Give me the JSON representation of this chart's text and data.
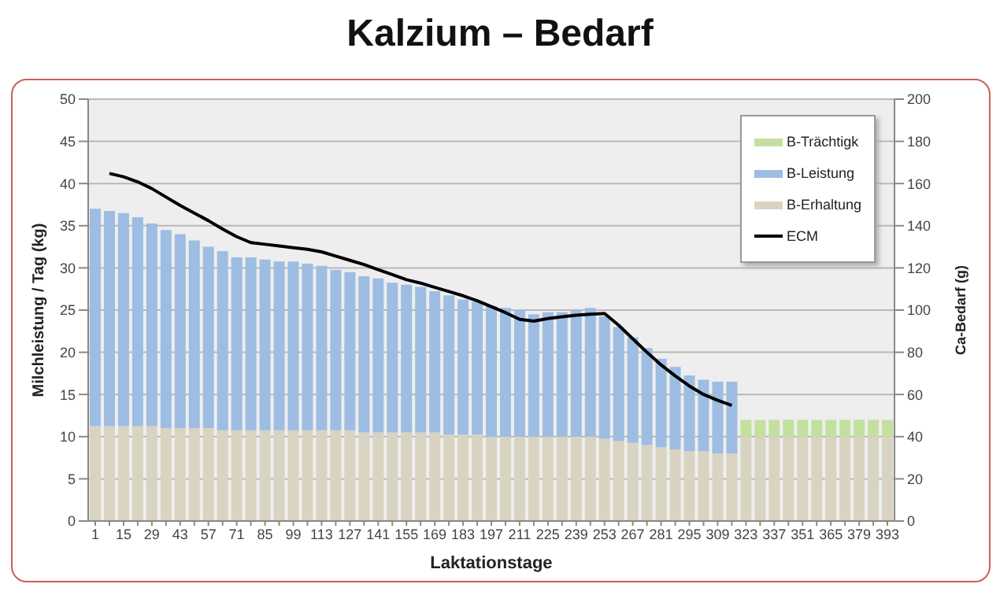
{
  "chart_data": {
    "type": "bar",
    "title": "Kalzium – Bedarf",
    "xlabel": "Laktationstage",
    "ylabel": "Milchleistung / Tag (kg)",
    "y2label": "Ca-Bedarf (g)",
    "categories": [
      "1",
      null,
      "15",
      null,
      "29",
      null,
      "43",
      null,
      "57",
      null,
      "71",
      null,
      "85",
      null,
      "99",
      null,
      "113",
      null,
      "127",
      null,
      "141",
      null,
      "155",
      null,
      "169",
      null,
      "183",
      null,
      "197",
      null,
      "211",
      null,
      "225",
      null,
      "239",
      null,
      "253",
      null,
      "267",
      null,
      "281",
      null,
      "295",
      null,
      "309",
      null,
      "323",
      null,
      "337",
      null,
      "351",
      null,
      "365",
      null,
      "379",
      null,
      "393"
    ],
    "stacked": true,
    "series": [
      {
        "name": "B-Erhaltung",
        "color": "#d9d3c1",
        "axis": "y2",
        "values": [
          45,
          45,
          45,
          45,
          45,
          44,
          44,
          44,
          44,
          43,
          43,
          43,
          43,
          43,
          43,
          43,
          43,
          43,
          43,
          42,
          42,
          42,
          42,
          42,
          42,
          41,
          41,
          41,
          40,
          40,
          40,
          40,
          40,
          40,
          40,
          40,
          39,
          38,
          37,
          36,
          35,
          34,
          33,
          33,
          32,
          32,
          40,
          40,
          40,
          40,
          40,
          40,
          40,
          40,
          40,
          40,
          40
        ]
      },
      {
        "name": "B-Leistung",
        "color": "#9dbde3",
        "axis": "y2",
        "values": [
          103,
          102,
          101,
          99,
          96,
          94,
          92,
          89,
          86,
          85,
          82,
          82,
          81,
          80,
          80,
          79,
          78,
          76,
          75,
          74,
          73,
          71,
          70,
          69,
          67,
          66,
          64,
          63,
          62,
          61,
          60,
          58,
          59,
          59,
          60,
          61,
          58,
          54,
          50,
          46,
          42,
          39,
          36,
          34,
          34,
          34,
          null,
          null,
          null,
          null,
          null,
          null,
          null,
          null,
          null,
          null,
          null
        ]
      },
      {
        "name": "B-Trächtigk",
        "color": "#c4e0a0",
        "axis": "y2",
        "values": [
          null,
          null,
          null,
          null,
          null,
          null,
          null,
          null,
          null,
          null,
          null,
          null,
          null,
          null,
          null,
          null,
          null,
          null,
          null,
          null,
          null,
          null,
          null,
          null,
          null,
          null,
          null,
          null,
          null,
          null,
          null,
          null,
          null,
          null,
          null,
          null,
          null,
          null,
          null,
          null,
          null,
          null,
          null,
          null,
          null,
          null,
          8,
          8,
          8,
          8,
          8,
          8,
          8,
          8,
          8,
          8,
          8
        ]
      },
      {
        "name": "ECM",
        "type": "line",
        "color": "#000000",
        "values": [
          null,
          41.2,
          40.8,
          40.2,
          39.4,
          38.4,
          37.4,
          36.5,
          35.6,
          34.6,
          33.7,
          33.0,
          32.8,
          32.6,
          32.4,
          32.2,
          31.9,
          31.4,
          30.9,
          30.4,
          29.8,
          29.2,
          28.6,
          28.2,
          27.7,
          27.2,
          26.7,
          26.1,
          25.4,
          24.7,
          23.9,
          23.7,
          24.0,
          24.2,
          24.4,
          24.5,
          24.6,
          23.2,
          21.6,
          20.0,
          18.5,
          17.2,
          16.0,
          15.0,
          14.3,
          13.7,
          null,
          null,
          null,
          null,
          null,
          null,
          null,
          null,
          null,
          null,
          null
        ]
      }
    ],
    "ylim": [
      0,
      50
    ],
    "yticks": [
      0,
      5,
      10,
      15,
      20,
      25,
      30,
      35,
      40,
      45,
      50
    ],
    "y2lim": [
      0,
      200
    ],
    "y2ticks": [
      0,
      20,
      40,
      60,
      80,
      100,
      120,
      140,
      160,
      180,
      200
    ],
    "grid": "y",
    "legend": "top right",
    "marker": "none"
  }
}
